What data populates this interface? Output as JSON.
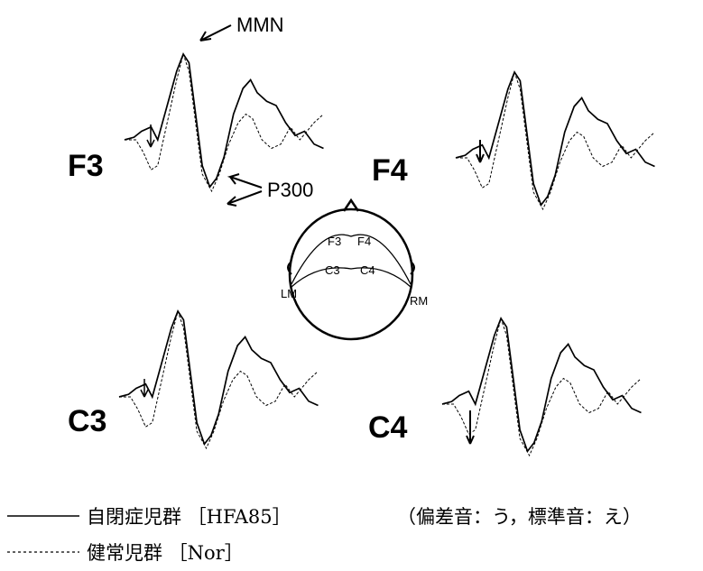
{
  "annotations": {
    "mmn": "MMN",
    "p300": "P300"
  },
  "panels": [
    {
      "label": "F3"
    },
    {
      "label": "F4"
    },
    {
      "label": "C3"
    },
    {
      "label": "C4"
    }
  ],
  "head": {
    "electrodes": [
      "F3",
      "F4",
      "C3",
      "C4"
    ],
    "references": [
      "LM",
      "RM"
    ]
  },
  "legend": {
    "items": [
      {
        "label": "自閉症児群 ［HFA85］"
      },
      {
        "label": "健常児群 ［Nor］"
      }
    ],
    "note": "（偏差音：う，標準音：え）"
  }
}
